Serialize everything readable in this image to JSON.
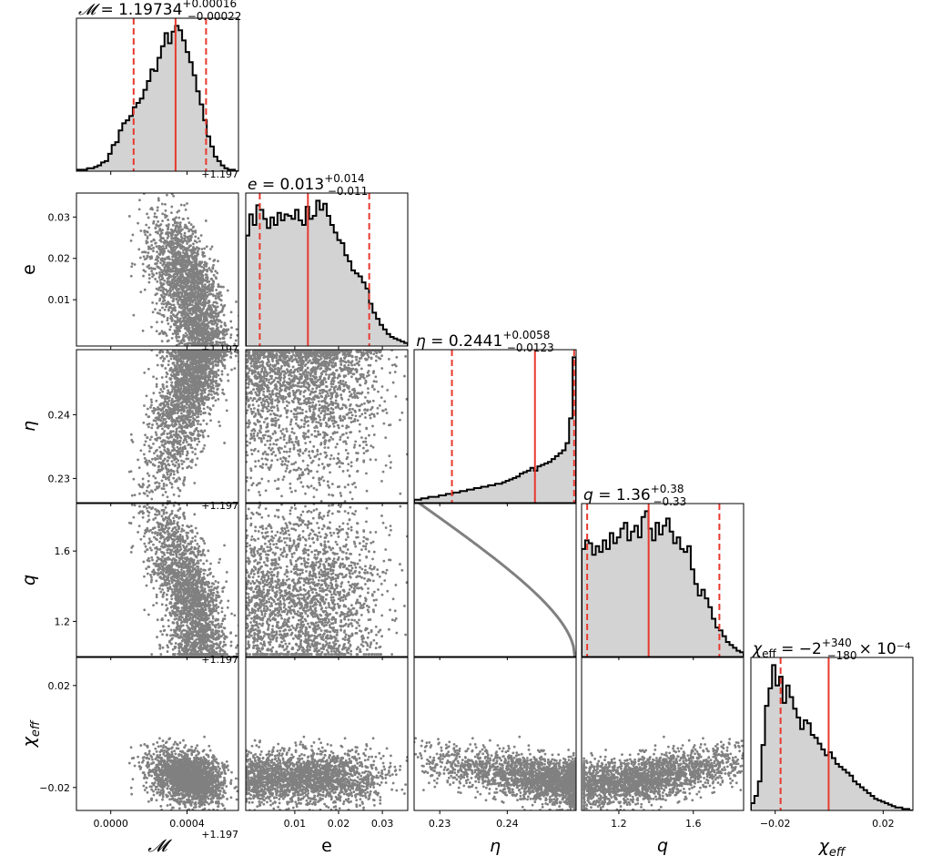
{
  "chart_data": {
    "type": "scatter",
    "variant": "corner-plot",
    "parameters": [
      {
        "key": "M",
        "symbol": "𝓜",
        "xlabel": "𝓜",
        "ylabel": "",
        "range": [
          -0.00018,
          0.00067
        ],
        "offset_text": "+1.197",
        "ticks": [
          0.0,
          0.0004
        ],
        "tick_labels": [
          "0.0000",
          "0.0004"
        ],
        "title": {
          "value": "1.19734",
          "plus": "+0.00016",
          "minus": "−0.00022",
          "suffix": ""
        },
        "median": 0.00034,
        "q16": 0.00012,
        "q84": 0.0005,
        "hist": [
          0.01,
          0.01,
          0.01,
          0.02,
          0.02,
          0.03,
          0.04,
          0.06,
          0.07,
          0.12,
          0.18,
          0.2,
          0.28,
          0.33,
          0.35,
          0.38,
          0.44,
          0.47,
          0.5,
          0.56,
          0.62,
          0.7,
          0.69,
          0.78,
          0.86,
          0.95,
          0.88,
          0.96,
          1.0,
          0.97,
          0.9,
          0.82,
          0.75,
          0.66,
          0.55,
          0.46,
          0.35,
          0.24,
          0.17,
          0.1,
          0.07,
          0.04,
          0.02,
          0.01,
          0.01,
          0.0
        ]
      },
      {
        "key": "e",
        "symbol": "e",
        "xlabel": "e",
        "ylabel": "e",
        "range": [
          -0.0012,
          0.0358
        ],
        "offset_text": "",
        "ticks": [
          0.01,
          0.02,
          0.03
        ],
        "tick_labels": [
          "0.01",
          "0.02",
          "0.03"
        ],
        "title": {
          "value": "0.013",
          "plus": "+0.014",
          "minus": "−0.011",
          "suffix": ""
        },
        "median": 0.013,
        "q16": 0.002,
        "q84": 0.027,
        "hist": [
          0.73,
          0.87,
          0.8,
          0.93,
          0.9,
          0.84,
          0.78,
          0.85,
          0.8,
          0.88,
          0.83,
          0.87,
          0.86,
          0.84,
          0.9,
          0.83,
          0.8,
          0.92,
          0.84,
          0.86,
          0.96,
          0.9,
          0.94,
          0.86,
          0.8,
          0.75,
          0.7,
          0.68,
          0.6,
          0.56,
          0.5,
          0.48,
          0.46,
          0.42,
          0.38,
          0.28,
          0.22,
          0.18,
          0.14,
          0.11,
          0.08,
          0.06,
          0.05,
          0.04,
          0.03,
          0.02
        ]
      },
      {
        "key": "eta",
        "symbol": "η",
        "xlabel": "η",
        "ylabel": "η",
        "range": [
          0.2262,
          0.2502
        ],
        "offset_text": "",
        "ticks": [
          0.23,
          0.24
        ],
        "tick_labels": [
          "0.23",
          "0.24"
        ],
        "title": {
          "value": "0.2441",
          "plus": "+0.0058",
          "minus": "−0.0123",
          "suffix": ""
        },
        "median": 0.2441,
        "q16": 0.2318,
        "q84": 0.2499,
        "hist": [
          0.02,
          0.02,
          0.03,
          0.03,
          0.04,
          0.04,
          0.04,
          0.05,
          0.05,
          0.06,
          0.06,
          0.07,
          0.07,
          0.08,
          0.08,
          0.09,
          0.09,
          0.1,
          0.1,
          0.11,
          0.11,
          0.12,
          0.12,
          0.13,
          0.13,
          0.14,
          0.15,
          0.16,
          0.17,
          0.18,
          0.2,
          0.21,
          0.22,
          0.24,
          0.22,
          0.25,
          0.26,
          0.27,
          0.28,
          0.3,
          0.32,
          0.34,
          0.36,
          0.41,
          0.58,
          1.0
        ]
      },
      {
        "key": "q",
        "symbol": "q",
        "xlabel": "q",
        "ylabel": "q",
        "range": [
          1.0,
          1.87
        ],
        "offset_text": "",
        "ticks": [
          1.2,
          1.6
        ],
        "tick_labels": [
          "1.2",
          "1.6"
        ],
        "title": {
          "value": "1.36",
          "plus": "+0.38",
          "minus": "−0.33",
          "suffix": ""
        },
        "median": 1.36,
        "q16": 1.03,
        "q84": 1.74,
        "hist": [
          0.74,
          0.8,
          0.78,
          0.7,
          0.76,
          0.72,
          0.8,
          0.74,
          0.85,
          0.78,
          0.82,
          0.88,
          0.92,
          0.8,
          0.86,
          0.9,
          0.82,
          0.96,
          1.0,
          0.88,
          0.8,
          0.92,
          0.84,
          0.9,
          0.95,
          0.86,
          0.78,
          0.82,
          0.74,
          0.72,
          0.76,
          0.6,
          0.5,
          0.42,
          0.46,
          0.4,
          0.34,
          0.26,
          0.2,
          0.18,
          0.14,
          0.1,
          0.08,
          0.06,
          0.04,
          0.03
        ]
      },
      {
        "key": "chi",
        "symbol": "χ_eff",
        "xlabel": "χ_eff",
        "ylabel": "χ_eff",
        "range": [
          -0.029,
          0.031
        ],
        "offset_text": "",
        "ticks": [
          -0.02,
          0.02
        ],
        "tick_labels": [
          "−0.02",
          "0.02"
        ],
        "title": {
          "value": "−2",
          "plus": "+340",
          "minus": "−180",
          "suffix": "× 10⁻⁴"
        },
        "median": -0.0002,
        "q16": -0.018,
        "q84": 0.034,
        "hist": [
          0.05,
          0.1,
          0.2,
          0.45,
          0.72,
          0.84,
          1.0,
          0.86,
          0.92,
          0.74,
          0.86,
          0.78,
          0.7,
          0.64,
          0.56,
          0.62,
          0.6,
          0.52,
          0.5,
          0.46,
          0.42,
          0.38,
          0.4,
          0.36,
          0.32,
          0.3,
          0.28,
          0.26,
          0.24,
          0.2,
          0.18,
          0.16,
          0.14,
          0.12,
          0.1,
          0.08,
          0.07,
          0.06,
          0.05,
          0.04,
          0.03,
          0.02,
          0.02,
          0.01,
          0.01,
          0.0
        ]
      }
    ],
    "pairs_description": "lower-triangle 2-D scatter panels of posterior samples",
    "colors": {
      "hist_fill": "#d3d3d3",
      "hist_edge": "#000000",
      "median_line": "#e8392f",
      "quantile_line": "#e8392f",
      "scatter_point": "#808080"
    },
    "grid": false
  }
}
